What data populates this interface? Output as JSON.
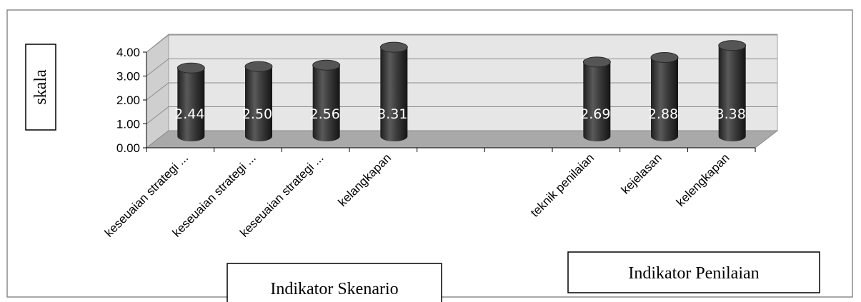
{
  "chart_data": {
    "type": "bar",
    "categories": [
      "keseuaian strategi ...",
      "keseuaian strategi ...",
      "keseuaian strategi ...",
      "kelangkapan",
      "",
      "",
      "teknik penilaian",
      "kejelasan",
      "kelengkapan"
    ],
    "values": [
      2.44,
      2.5,
      2.56,
      3.31,
      null,
      null,
      2.69,
      2.88,
      3.38
    ],
    "data_labels": [
      "2.44",
      "2.50",
      "2.56",
      "3.31",
      "",
      "",
      "2.69",
      "2.88",
      "3.38"
    ],
    "ylim": [
      0,
      4
    ],
    "yticks": [
      "0.00",
      "1.00",
      "2.00",
      "3.00",
      "4.00"
    ],
    "ylabel": "skala",
    "group_labels": [
      "Indikator Skenario",
      "Indikator Penilaian"
    ],
    "grid": true,
    "legend": "none",
    "bar_color": "#3a3a3a",
    "wall_color": "#e6e6e6",
    "floor_color": "#a9a9a9"
  }
}
